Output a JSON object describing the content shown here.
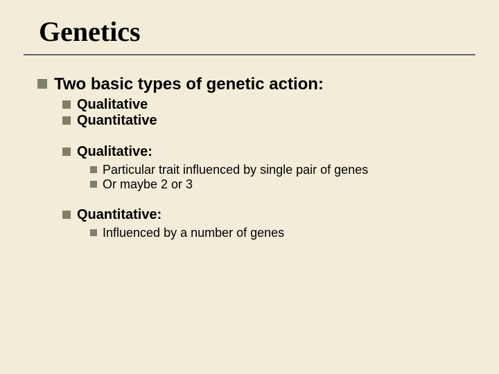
{
  "slide": {
    "background_color": "#f2ecd9",
    "bullet_color": "#808066",
    "underline_color": "#666666",
    "text_color": "#000000",
    "title": {
      "text": "Genetics",
      "font_family": "Times New Roman",
      "font_size_pt": 40,
      "font_weight": "bold"
    },
    "l1": {
      "heading": "Two basic types of genetic action:"
    },
    "l2": {
      "item1": "Qualitative",
      "item2": "Quantitative",
      "qual_heading": "Qualitative:",
      "quant_heading": "Quantitative:"
    },
    "l3": {
      "qual1": "Particular trait influenced by single pair of genes",
      "qual2": "Or maybe 2 or 3",
      "quant1": "Influenced by a number of genes"
    },
    "font_sizes": {
      "l1": 24,
      "l2": 20,
      "l3": 18
    }
  }
}
